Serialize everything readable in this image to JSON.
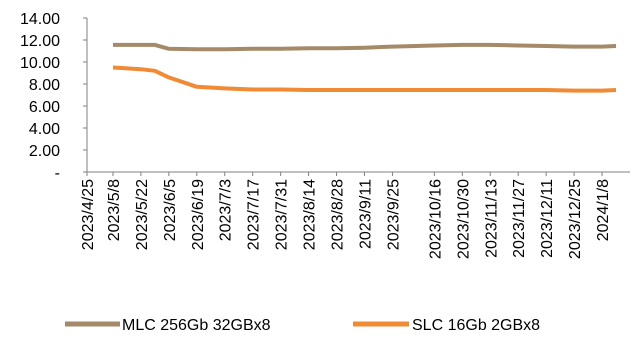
{
  "chart_data": {
    "type": "line",
    "x": [
      "2023/4/25",
      "2023/5/8",
      "2023/5/22",
      "2023/6/5",
      "2023/6/19",
      "2023/7/3",
      "2023/7/17",
      "2023/7/31",
      "2023/8/14",
      "2023/8/28",
      "2023/9/11",
      "2023/9/25",
      "2023/10/16",
      "2023/10/30",
      "2023/11/13",
      "2023/11/27",
      "2023/12/11",
      "2023/12/25",
      "2024/1/8"
    ],
    "ylim": [
      0,
      14
    ],
    "y_ticks": [
      "-",
      "2.00",
      "4.00",
      "6.00",
      "8.00",
      "10.00",
      "12.00",
      "14.00"
    ],
    "grid": false,
    "legend_position": "bottom",
    "series": [
      {
        "name": "MLC 256Gb 32GBx8",
        "color": "#a48a68",
        "points": [
          [
            "2023/5/8",
            11.55
          ],
          [
            "2023/5/22",
            11.55
          ],
          [
            "2023/5/29",
            11.55
          ],
          [
            "2023/6/5",
            11.2
          ],
          [
            "2023/6/19",
            11.15
          ],
          [
            "2023/7/3",
            11.15
          ],
          [
            "2023/7/17",
            11.2
          ],
          [
            "2023/7/31",
            11.2
          ],
          [
            "2023/8/14",
            11.25
          ],
          [
            "2023/8/28",
            11.25
          ],
          [
            "2023/9/11",
            11.3
          ],
          [
            "2023/9/25",
            11.4
          ],
          [
            "2023/10/16",
            11.5
          ],
          [
            "2023/10/30",
            11.55
          ],
          [
            "2023/11/13",
            11.55
          ],
          [
            "2023/11/27",
            11.5
          ],
          [
            "2023/12/11",
            11.45
          ],
          [
            "2023/12/25",
            11.4
          ],
          [
            "2024/1/8",
            11.4
          ],
          [
            "2024/1/15",
            11.45
          ]
        ]
      },
      {
        "name": "SLC 16Gb 2GBx8",
        "color": "#f08a35",
        "points": [
          [
            "2023/5/8",
            9.5
          ],
          [
            "2023/5/22",
            9.35
          ],
          [
            "2023/5/29",
            9.2
          ],
          [
            "2023/6/5",
            8.6
          ],
          [
            "2023/6/19",
            7.75
          ],
          [
            "2023/7/3",
            7.6
          ],
          [
            "2023/7/17",
            7.5
          ],
          [
            "2023/7/31",
            7.5
          ],
          [
            "2023/8/14",
            7.45
          ],
          [
            "2023/8/28",
            7.45
          ],
          [
            "2023/9/11",
            7.45
          ],
          [
            "2023/9/25",
            7.45
          ],
          [
            "2023/10/16",
            7.45
          ],
          [
            "2023/10/30",
            7.45
          ],
          [
            "2023/11/13",
            7.45
          ],
          [
            "2023/11/27",
            7.45
          ],
          [
            "2023/12/11",
            7.45
          ],
          [
            "2023/12/25",
            7.4
          ],
          [
            "2024/1/8",
            7.4
          ],
          [
            "2024/1/15",
            7.45
          ]
        ]
      }
    ]
  }
}
